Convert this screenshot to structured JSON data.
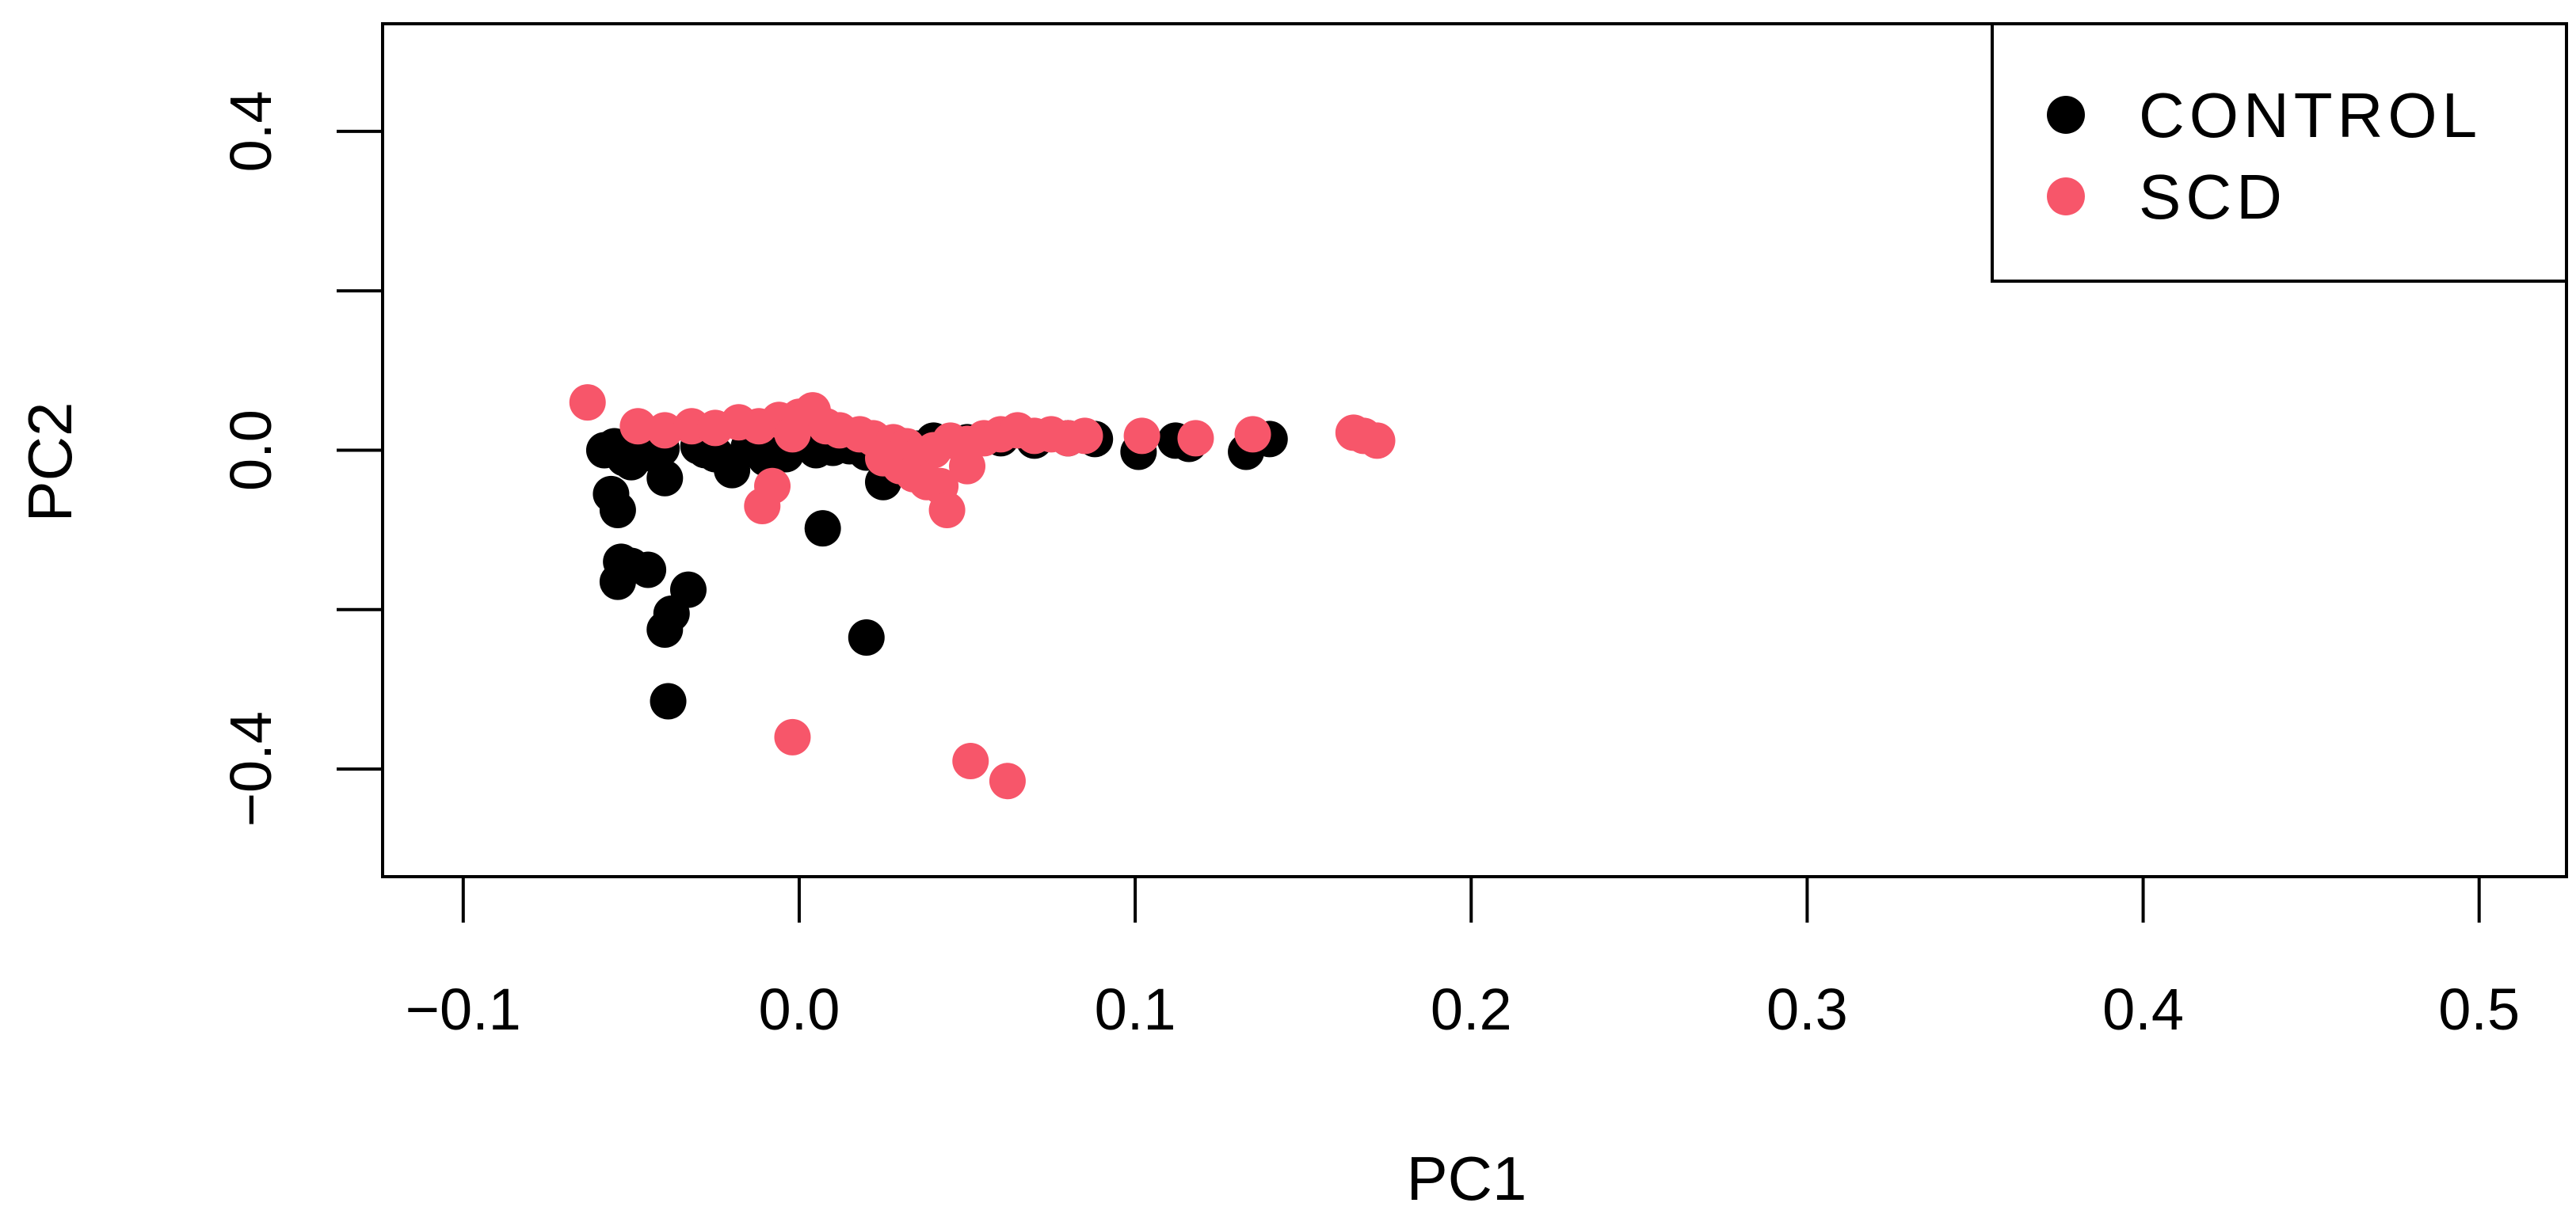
{
  "chart_data": {
    "type": "scatter",
    "title": "",
    "xlabel": "PC1",
    "ylabel": "PC2",
    "xlim": [
      -0.124,
      0.526
    ],
    "ylim": [
      -0.535,
      0.535
    ],
    "x_ticks": [
      -0.1,
      0.0,
      0.1,
      0.2,
      0.3,
      0.4,
      0.5
    ],
    "x_tick_labels": [
      "−0.1",
      "0.0",
      "0.1",
      "0.2",
      "0.3",
      "0.4",
      "0.5"
    ],
    "y_ticks": [
      -0.4,
      -0.2,
      0.0,
      0.2,
      0.4
    ],
    "y_tick_labels": [
      "−0.4",
      "",
      "0.0",
      "",
      "0.4"
    ],
    "legend": {
      "position": "top-right",
      "boxed": true
    },
    "grid": false,
    "series": [
      {
        "name": "CONTROL",
        "color": "#000000",
        "points": [
          [
            -0.058,
            0.0
          ],
          [
            -0.055,
            0.005
          ],
          [
            -0.052,
            -0.01
          ],
          [
            -0.056,
            -0.055
          ],
          [
            -0.054,
            -0.075
          ],
          [
            -0.05,
            -0.015
          ],
          [
            -0.047,
            -0.005
          ],
          [
            -0.041,
            0.002
          ],
          [
            -0.04,
            -0.035
          ],
          [
            -0.045,
            0.008
          ],
          [
            -0.03,
            0.005
          ],
          [
            -0.028,
            0.0
          ],
          [
            -0.025,
            -0.005
          ],
          [
            -0.02,
            -0.025
          ],
          [
            -0.015,
            0.004
          ],
          [
            -0.01,
            -0.01
          ],
          [
            -0.008,
            0.002
          ],
          [
            -0.004,
            -0.005
          ],
          [
            0.005,
            0.0
          ],
          [
            0.01,
            0.003
          ],
          [
            0.015,
            0.005
          ],
          [
            0.02,
            -0.003
          ],
          [
            0.025,
            -0.04
          ],
          [
            0.03,
            0.006
          ],
          [
            0.035,
            0.002
          ],
          [
            0.04,
            0.012
          ],
          [
            0.05,
            0.01
          ],
          [
            0.06,
            0.015
          ],
          [
            0.07,
            0.012
          ],
          [
            0.08,
            0.015
          ],
          [
            0.088,
            0.014
          ],
          [
            0.101,
            -0.002
          ],
          [
            0.112,
            0.012
          ],
          [
            0.116,
            0.008
          ],
          [
            0.133,
            -0.002
          ],
          [
            0.14,
            0.014
          ],
          [
            -0.053,
            -0.14
          ],
          [
            -0.05,
            -0.145
          ],
          [
            -0.054,
            -0.165
          ],
          [
            -0.045,
            -0.15
          ],
          [
            -0.033,
            -0.175
          ],
          [
            -0.038,
            -0.205
          ],
          [
            -0.04,
            -0.225
          ],
          [
            0.02,
            -0.235
          ],
          [
            0.007,
            -0.098
          ],
          [
            -0.039,
            -0.315
          ]
        ]
      },
      {
        "name": "SCD",
        "color": "#F7566A",
        "points": [
          [
            -0.063,
            0.06
          ],
          [
            -0.048,
            0.03
          ],
          [
            -0.04,
            0.025
          ],
          [
            -0.032,
            0.03
          ],
          [
            -0.025,
            0.028
          ],
          [
            -0.018,
            0.035
          ],
          [
            -0.012,
            0.03
          ],
          [
            -0.006,
            0.038
          ],
          [
            0.0,
            0.042
          ],
          [
            0.004,
            0.05
          ],
          [
            0.008,
            0.03
          ],
          [
            -0.002,
            0.02
          ],
          [
            0.012,
            0.025
          ],
          [
            0.018,
            0.02
          ],
          [
            0.022,
            0.015
          ],
          [
            0.028,
            0.01
          ],
          [
            0.032,
            0.005
          ],
          [
            0.036,
            -0.005
          ],
          [
            0.04,
            0.0
          ],
          [
            0.045,
            0.012
          ],
          [
            0.05,
            0.008
          ],
          [
            0.055,
            0.015
          ],
          [
            0.06,
            0.02
          ],
          [
            0.065,
            0.025
          ],
          [
            0.07,
            0.018
          ],
          [
            0.075,
            0.02
          ],
          [
            0.08,
            0.015
          ],
          [
            0.085,
            0.018
          ],
          [
            0.102,
            0.018
          ],
          [
            0.118,
            0.015
          ],
          [
            0.135,
            0.02
          ],
          [
            0.165,
            0.022
          ],
          [
            0.168,
            0.018
          ],
          [
            0.172,
            0.012
          ],
          [
            0.03,
            -0.02
          ],
          [
            0.034,
            -0.03
          ],
          [
            0.038,
            -0.04
          ],
          [
            0.042,
            -0.045
          ],
          [
            0.05,
            -0.02
          ],
          [
            0.025,
            -0.01
          ],
          [
            -0.011,
            -0.07
          ],
          [
            -0.008,
            -0.045
          ],
          [
            0.044,
            -0.075
          ],
          [
            -0.002,
            -0.36
          ],
          [
            0.051,
            -0.39
          ],
          [
            0.062,
            -0.415
          ]
        ]
      }
    ]
  }
}
